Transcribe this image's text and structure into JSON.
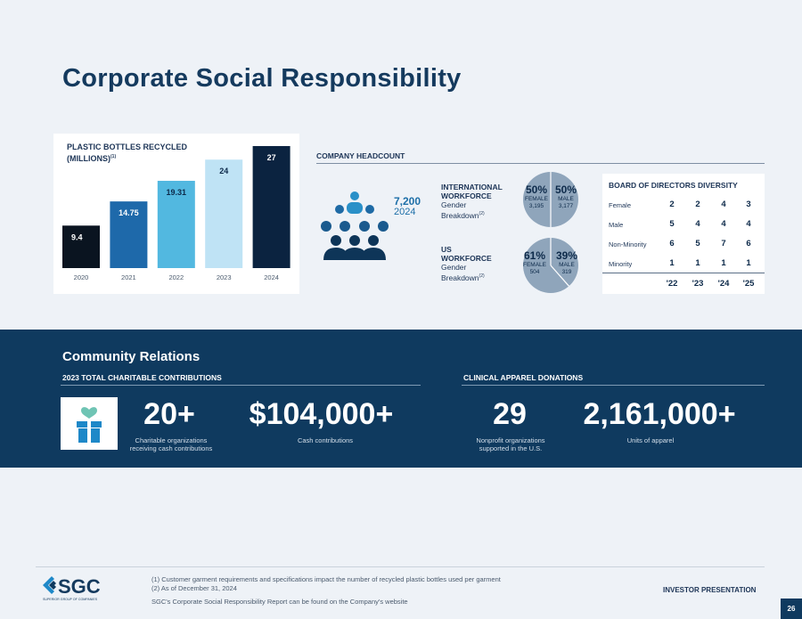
{
  "title": "Corporate Social Responsibility",
  "plastic": {
    "title_line1": "PLASTIC BOTTLES RECYCLED",
    "title_line2": "(MILLIONS)",
    "title_sup": "(1)"
  },
  "chart_data": {
    "type": "bar",
    "categories": [
      "2020",
      "2021",
      "2022",
      "2023",
      "2024"
    ],
    "values": [
      9.4,
      14.75,
      19.31,
      24,
      27
    ],
    "value_labels": [
      "9.4",
      "14.75",
      "19.31",
      "24",
      "27"
    ],
    "colors": [
      "#0a1420",
      "#1e69aa",
      "#52b8e0",
      "#bfe3f5",
      "#0b2340"
    ],
    "label_colors": [
      "#ffffff",
      "#ffffff",
      "#0d2a4a",
      "#0d2a4a",
      "#ffffff"
    ],
    "title": "PLASTIC BOTTLES RECYCLED (MILLIONS)",
    "ylim": [
      0,
      27
    ],
    "grid": false
  },
  "headcount": {
    "title": "COMPANY HEADCOUNT",
    "total": "7,200",
    "year": "2024",
    "people_icon": "people-group-icon",
    "intl": {
      "label_lines": [
        "INTERNATIONAL",
        "WORKFORCE"
      ],
      "sub_lines": [
        "Gender",
        "Breakdown"
      ],
      "sup": "(2)",
      "female_pct": "50%",
      "male_pct": "50%",
      "female_label": "FEMALE",
      "male_label": "MALE",
      "female_count": "3,195",
      "male_count": "3,177",
      "female_share": 0.5
    },
    "us": {
      "label_lines": [
        "US",
        "WORKFORCE"
      ],
      "sub_lines": [
        "Gender",
        "Breakdown"
      ],
      "sup": "(2)",
      "female_pct": "61%",
      "male_pct": "39%",
      "female_label": "FEMALE",
      "male_label": "MALE",
      "female_count": "504",
      "male_count": "319",
      "female_share": 0.61
    }
  },
  "board": {
    "title": "BOARD OF DIRECTORS DIVERSITY",
    "rows": [
      {
        "label": "Female",
        "values": [
          "2",
          "2",
          "4",
          "3"
        ]
      },
      {
        "label": "Male",
        "values": [
          "5",
          "4",
          "4",
          "4"
        ]
      },
      {
        "label": "Non-Minority",
        "values": [
          "6",
          "5",
          "7",
          "6"
        ]
      },
      {
        "label": "Minority",
        "values": [
          "1",
          "1",
          "1",
          "1"
        ]
      }
    ],
    "years": [
      "'22",
      "'23",
      "'24",
      "'25"
    ]
  },
  "community": {
    "title": "Community Relations",
    "charitable_title": "2023 TOTAL CHARITABLE CONTRIBUTIONS",
    "apparel_title": "CLINICAL APPAREL DONATIONS",
    "gift_icon": "gift-heart-icon",
    "stats": [
      {
        "value": "20+",
        "caption_lines": [
          "Charitable organizations",
          "receiving cash contributions"
        ]
      },
      {
        "value": "$104,000+",
        "caption_lines": [
          "Cash contributions"
        ]
      },
      {
        "value": "29",
        "caption_lines": [
          "Nonprofit organizations",
          "supported in the U.S."
        ]
      },
      {
        "value": "2,161,000+",
        "caption_lines": [
          "Units of apparel"
        ]
      }
    ]
  },
  "footer": {
    "logo_text": "SGC",
    "logo_sub": "SUPERIOR GROUP OF COMPANIES",
    "notes": [
      "(1) Customer garment requirements and specifications impact the number of recycled plastic bottles used per garment",
      "(2) As of December 31, 2024",
      "SGC's Corporate Social Responsibility Report can be found on the Company's website"
    ],
    "investor": "INVESTOR PRESENTATION",
    "page": "26"
  },
  "colors": {
    "navy": "#0f3a5f",
    "title": "#143a5e",
    "accent": "#1d6fa8",
    "pie": "#8fa5bb",
    "gift": "#1e88c8",
    "heart": "#6fc4b4"
  }
}
